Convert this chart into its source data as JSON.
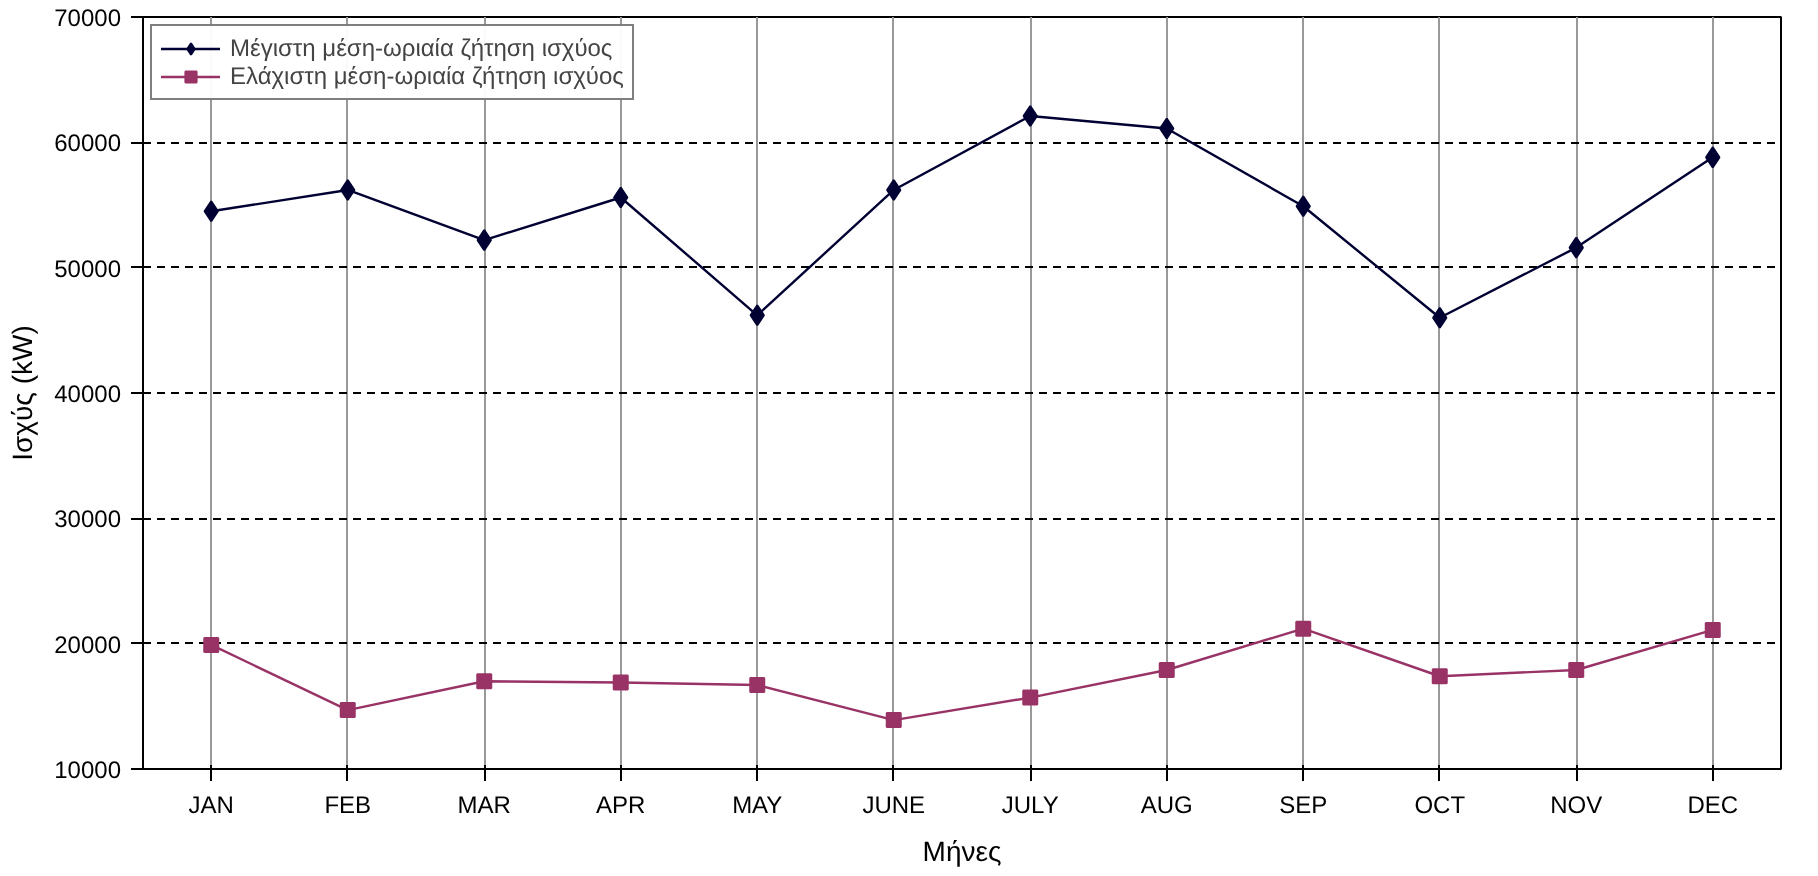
{
  "chart_data": {
    "type": "line",
    "xlabel": "Μήνες",
    "ylabel": "Ισχύς (kW)",
    "categories": [
      "JAN",
      "FEB",
      "MAR",
      "APR",
      "MAY",
      "JUNE",
      "JULY",
      "AUG",
      "SEP",
      "OCT",
      "NOV",
      "DEC"
    ],
    "series": [
      {
        "name": "Μέγιστη μέση-ωριαία ζήτηση ισχύος",
        "color": "#000033",
        "marker": "diamond",
        "values": [
          54500,
          56200,
          52200,
          55600,
          46200,
          56200,
          62100,
          61100,
          54900,
          46000,
          51600,
          58800
        ]
      },
      {
        "name": "Ελάχιστη μέση-ωριαία ζήτηση ισχύος",
        "color": "#993366",
        "marker": "square",
        "values": [
          19900,
          14700,
          17000,
          16900,
          16700,
          13900,
          15700,
          17900,
          21200,
          17400,
          17900,
          21100
        ]
      }
    ],
    "ylim": [
      10000,
      70000
    ],
    "yticks": [
      10000,
      20000,
      30000,
      40000,
      50000,
      60000,
      70000
    ],
    "grid": true,
    "legend": "top left",
    "line_style": "solid"
  }
}
